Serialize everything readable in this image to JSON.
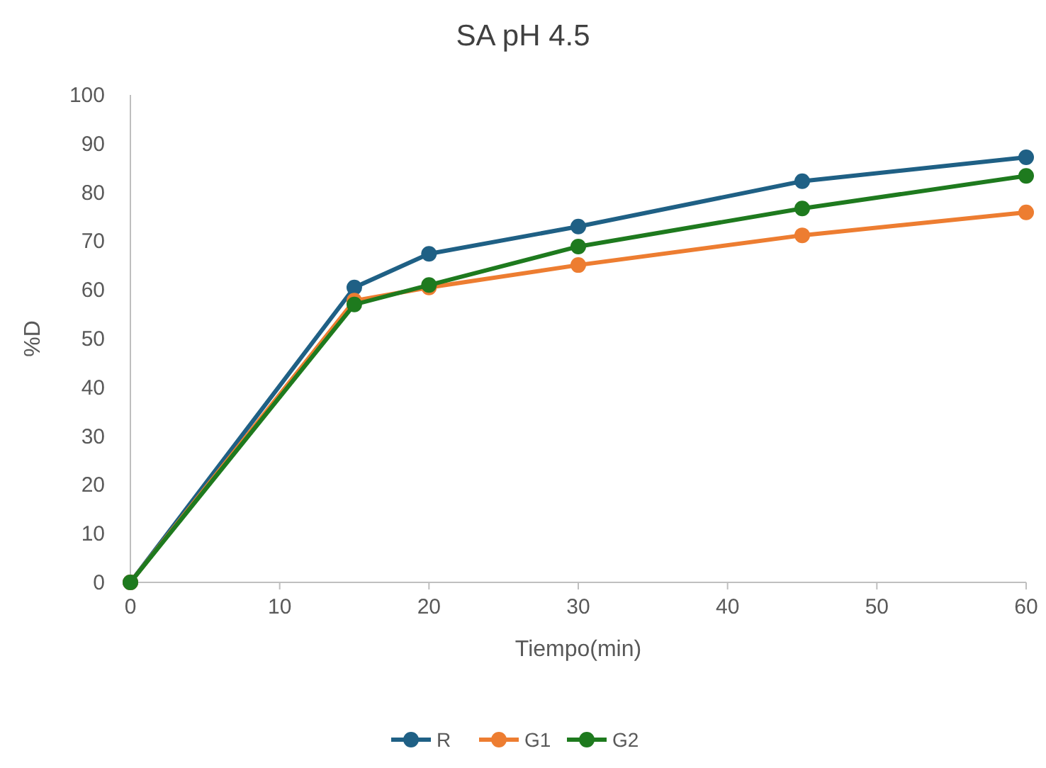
{
  "chart_data": {
    "type": "line",
    "title": "SA pH 4.5",
    "xlabel": "Tiempo(min)",
    "ylabel": "%D",
    "x": [
      0,
      15,
      20,
      30,
      45,
      60
    ],
    "xlim": [
      0,
      60
    ],
    "xticks": [
      0,
      10,
      20,
      30,
      40,
      50,
      60
    ],
    "ylim": [
      0,
      100
    ],
    "yticks": [
      0,
      10,
      20,
      30,
      40,
      50,
      60,
      70,
      80,
      90,
      100
    ],
    "grid": false,
    "legend": "bottom",
    "marker": "circle",
    "line_style": "solid",
    "series": [
      {
        "name": "R",
        "color": "#1f6085",
        "values": [
          0,
          60.5,
          67.4,
          73,
          82.3,
          87.2
        ]
      },
      {
        "name": "G1",
        "color": "#ed7d31",
        "values": [
          0,
          57.8,
          60.5,
          65.1,
          71.2,
          75.9
        ]
      },
      {
        "name": "G2",
        "color": "#1e7a1e",
        "values": [
          0,
          57,
          61,
          68.9,
          76.7,
          83.4
        ]
      }
    ]
  }
}
